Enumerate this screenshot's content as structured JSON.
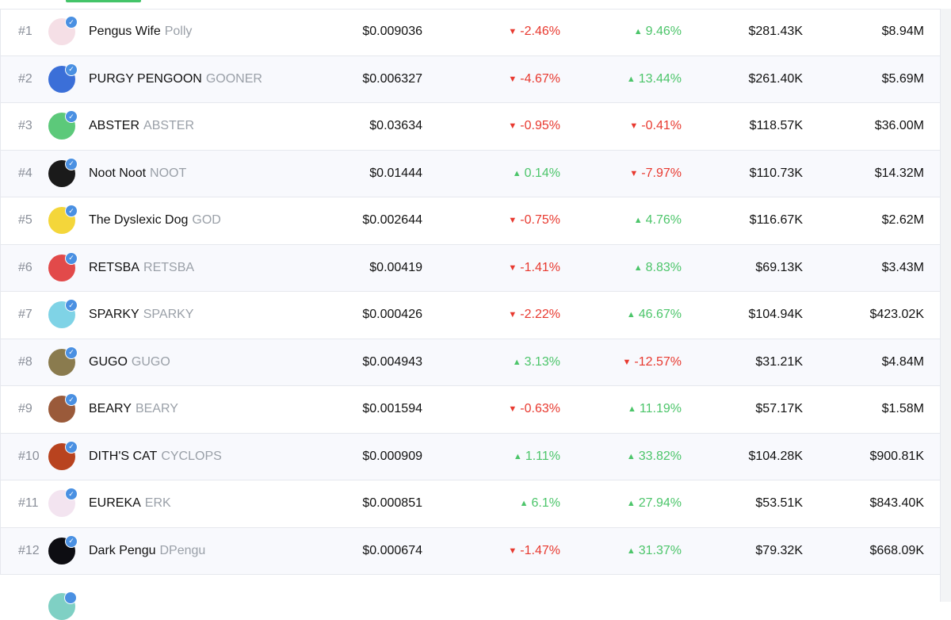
{
  "colors": {
    "negative": "#e8392f",
    "positive": "#4cc56a",
    "accent": "#44c469",
    "verified": "#4a90e2"
  },
  "rows": [
    {
      "rank": "#1",
      "name": "Pengus Wife",
      "ticker": "Polly",
      "price": "$0.009036",
      "chg1": {
        "dir": "down",
        "value": "-2.46%"
      },
      "chg2": {
        "dir": "up",
        "value": "9.46%"
      },
      "volume": "$281.43K",
      "mcap": "$8.94M",
      "avatar_color": "#f5dfe6"
    },
    {
      "rank": "#2",
      "name": "PURGY PENGOON",
      "ticker": "GOONER",
      "price": "$0.006327",
      "chg1": {
        "dir": "down",
        "value": "-4.67%"
      },
      "chg2": {
        "dir": "up",
        "value": "13.44%"
      },
      "volume": "$261.40K",
      "mcap": "$5.69M",
      "avatar_color": "#3b6fd8"
    },
    {
      "rank": "#3",
      "name": "ABSTER",
      "ticker": "ABSTER",
      "price": "$0.03634",
      "chg1": {
        "dir": "down",
        "value": "-0.95%"
      },
      "chg2": {
        "dir": "down",
        "value": "-0.41%"
      },
      "volume": "$118.57K",
      "mcap": "$36.00M",
      "avatar_color": "#5cc97a"
    },
    {
      "rank": "#4",
      "name": "Noot Noot",
      "ticker": "NOOT",
      "price": "$0.01444",
      "chg1": {
        "dir": "up",
        "value": "0.14%"
      },
      "chg2": {
        "dir": "down",
        "value": "-7.97%"
      },
      "volume": "$110.73K",
      "mcap": "$14.32M",
      "avatar_color": "#1a1a1a"
    },
    {
      "rank": "#5",
      "name": "The Dyslexic Dog",
      "ticker": "GOD",
      "price": "$0.002644",
      "chg1": {
        "dir": "down",
        "value": "-0.75%"
      },
      "chg2": {
        "dir": "up",
        "value": "4.76%"
      },
      "volume": "$116.67K",
      "mcap": "$2.62M",
      "avatar_color": "#f4d63a"
    },
    {
      "rank": "#6",
      "name": "RETSBA",
      "ticker": "RETSBA",
      "price": "$0.00419",
      "chg1": {
        "dir": "down",
        "value": "-1.41%"
      },
      "chg2": {
        "dir": "up",
        "value": "8.83%"
      },
      "volume": "$69.13K",
      "mcap": "$3.43M",
      "avatar_color": "#e24a4a"
    },
    {
      "rank": "#7",
      "name": "SPARKY",
      "ticker": "SPARKY",
      "price": "$0.000426",
      "chg1": {
        "dir": "down",
        "value": "-2.22%"
      },
      "chg2": {
        "dir": "up",
        "value": "46.67%"
      },
      "volume": "$104.94K",
      "mcap": "$423.02K",
      "avatar_color": "#7fd3e6"
    },
    {
      "rank": "#8",
      "name": "GUGO",
      "ticker": "GUGO",
      "price": "$0.004943",
      "chg1": {
        "dir": "up",
        "value": "3.13%"
      },
      "chg2": {
        "dir": "down",
        "value": "-12.57%"
      },
      "volume": "$31.21K",
      "mcap": "$4.84M",
      "avatar_color": "#8a7b4e"
    },
    {
      "rank": "#9",
      "name": "BEARY",
      "ticker": "BEARY",
      "price": "$0.001594",
      "chg1": {
        "dir": "down",
        "value": "-0.63%"
      },
      "chg2": {
        "dir": "up",
        "value": "11.19%"
      },
      "volume": "$57.17K",
      "mcap": "$1.58M",
      "avatar_color": "#9a5a3a"
    },
    {
      "rank": "#10",
      "name": "DITH'S CAT",
      "ticker": "CYCLOPS",
      "price": "$0.000909",
      "chg1": {
        "dir": "up",
        "value": "1.11%"
      },
      "chg2": {
        "dir": "up",
        "value": "33.82%"
      },
      "volume": "$104.28K",
      "mcap": "$900.81K",
      "avatar_color": "#b8431f"
    },
    {
      "rank": "#11",
      "name": "EUREKA",
      "ticker": "ERK",
      "price": "$0.000851",
      "chg1": {
        "dir": "up",
        "value": "6.1%"
      },
      "chg2": {
        "dir": "up",
        "value": "27.94%"
      },
      "volume": "$53.51K",
      "mcap": "$843.40K",
      "avatar_color": "#f3e4f0"
    },
    {
      "rank": "#12",
      "name": "Dark Pengu",
      "ticker": "DPengu",
      "price": "$0.000674",
      "chg1": {
        "dir": "down",
        "value": "-1.47%"
      },
      "chg2": {
        "dir": "up",
        "value": "31.37%"
      },
      "volume": "$79.32K",
      "mcap": "$668.09K",
      "avatar_color": "#0d0d12"
    }
  ]
}
